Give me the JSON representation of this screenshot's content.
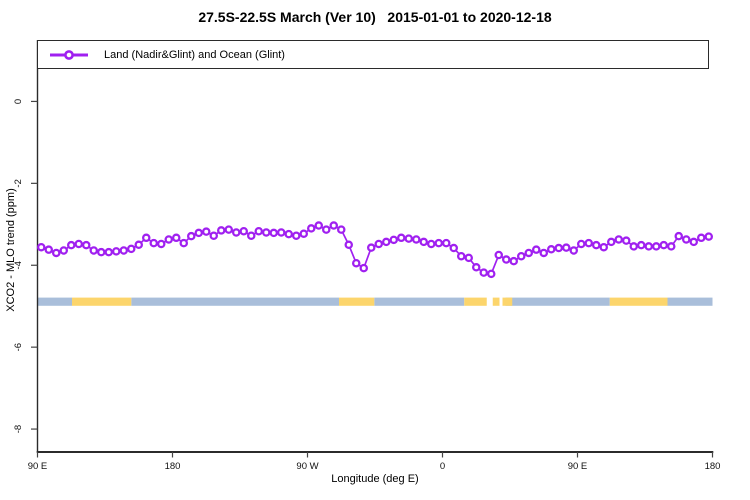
{
  "title": "27.5S-22.5S March (Ver 10)   2015-01-01 to 2020-12-18",
  "legend": {
    "series_label": "Land (Nadir&Glint) and Ocean (Glint)"
  },
  "axes": {
    "x_label": "Longitude (deg E)",
    "y_label": "XCO2 - MLO trend (ppm)",
    "x_ticks": [
      {
        "label": "90 E",
        "value": 90
      },
      {
        "label": "180",
        "value": 180
      },
      {
        "label": "90 W",
        "value": 270
      },
      {
        "label": "0",
        "value": 360
      },
      {
        "label": "90 E",
        "value": 450
      },
      {
        "label": "180",
        "value": 540
      }
    ],
    "y_ticks": [
      {
        "label": "0",
        "value": 0
      },
      {
        "label": "-2",
        "value": -2
      },
      {
        "label": "-4",
        "value": -4
      },
      {
        "label": "-6",
        "value": -6
      },
      {
        "label": "-8",
        "value": -8
      }
    ]
  },
  "colors": {
    "series": "#A020F0",
    "marker_fill": "#ffffff",
    "ocean_band": "#A9BEDA",
    "land_band": "#FCD56C",
    "axis": "#2b2b2b"
  },
  "chart_data": {
    "type": "line",
    "title": "27.5S-22.5S March (Ver 10)   2015-01-01 to 2020-12-18",
    "xlabel": "Longitude (deg E)",
    "ylabel": "XCO2 - MLO trend (ppm)",
    "xlim": [
      90,
      540
    ],
    "ylim": [
      1.5,
      -8.56
    ],
    "grid": false,
    "legend_position": "top-left-box",
    "marker": "open-circle",
    "x": [
      92.5,
      97.5,
      102.5,
      107.5,
      112.5,
      117.5,
      122.5,
      127.5,
      132.5,
      137.5,
      142.5,
      147.5,
      152.5,
      157.5,
      162.5,
      167.5,
      172.5,
      177.5,
      182.5,
      187.5,
      192.5,
      197.5,
      202.5,
      207.5,
      212.5,
      217.5,
      222.5,
      227.5,
      232.5,
      237.5,
      242.5,
      247.5,
      252.5,
      257.5,
      262.5,
      267.5,
      272.5,
      277.5,
      282.5,
      287.5,
      292.5,
      297.5,
      302.5,
      307.5,
      312.5,
      317.5,
      322.5,
      327.5,
      332.5,
      337.5,
      342.5,
      347.5,
      352.5,
      357.5,
      362.5,
      367.5,
      372.5,
      377.5,
      382.5,
      387.5,
      392.5,
      397.5,
      402.5,
      407.5,
      412.5,
      417.5,
      422.5,
      427.5,
      432.5,
      437.5,
      442.5,
      447.5,
      452.5,
      457.5,
      462.5,
      467.5,
      472.5,
      477.5,
      482.5,
      487.5,
      492.5,
      497.5,
      502.5,
      507.5,
      512.5,
      517.5,
      522.5,
      527.5,
      532.5,
      537.5
    ],
    "series": [
      {
        "name": "Land (Nadir&Glint) and Ocean (Glint)",
        "color": "#A020F0",
        "values": [
          -3.56,
          -3.62,
          -3.7,
          -3.64,
          -3.51,
          -3.48,
          -3.51,
          -3.64,
          -3.68,
          -3.68,
          -3.66,
          -3.64,
          -3.6,
          -3.5,
          -3.33,
          -3.46,
          -3.48,
          -3.37,
          -3.33,
          -3.46,
          -3.29,
          -3.21,
          -3.18,
          -3.28,
          -3.15,
          -3.13,
          -3.2,
          -3.17,
          -3.28,
          -3.17,
          -3.2,
          -3.21,
          -3.2,
          -3.24,
          -3.28,
          -3.23,
          -3.1,
          -3.03,
          -3.13,
          -3.03,
          -3.13,
          -3.5,
          -3.95,
          -4.07,
          -3.57,
          -3.48,
          -3.43,
          -3.38,
          -3.33,
          -3.35,
          -3.37,
          -3.43,
          -3.48,
          -3.46,
          -3.46,
          -3.58,
          -3.78,
          -3.82,
          -4.05,
          -4.18,
          -4.21,
          -3.75,
          -3.86,
          -3.9,
          -3.78,
          -3.7,
          -3.62,
          -3.7,
          -3.61,
          -3.58,
          -3.57,
          -3.64,
          -3.48,
          -3.46,
          -3.51,
          -3.56,
          -3.43,
          -3.37,
          -3.4,
          -3.54,
          -3.51,
          -3.54,
          -3.54,
          -3.51,
          -3.54,
          -3.29,
          -3.37,
          -3.43,
          -3.33,
          -3.3
        ]
      }
    ],
    "surface_band": {
      "description": "land/ocean indicator strip",
      "y_center": -4.89,
      "height": 0.2,
      "segments": [
        {
          "type": "ocean",
          "from": 90,
          "to": 113
        },
        {
          "type": "ocean",
          "from": 152.5,
          "to": 291
        },
        {
          "type": "ocean",
          "from": 314.5,
          "to": 374.5
        },
        {
          "type": "ocean",
          "from": 402,
          "to": 471.5
        },
        {
          "type": "ocean",
          "from": 510,
          "to": 540
        },
        {
          "type": "land",
          "from": 113,
          "to": 152.5
        },
        {
          "type": "land",
          "from": 291,
          "to": 314.5
        },
        {
          "type": "land",
          "from": 374.5,
          "to": 389.5
        },
        {
          "type": "land",
          "from": 393.5,
          "to": 398
        },
        {
          "type": "land",
          "from": 400,
          "to": 406.5
        },
        {
          "type": "land",
          "from": 471.5,
          "to": 510
        }
      ]
    }
  }
}
